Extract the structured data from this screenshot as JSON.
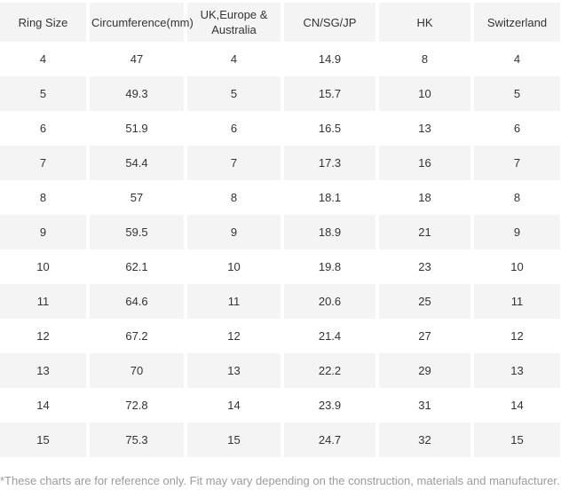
{
  "table": {
    "headers": [
      "Ring Size",
      "Circumference(mm)",
      "UK,Europe &\nAustralia",
      "CN/SG/JP",
      "HK",
      "Switzerland"
    ],
    "rows": [
      [
        "4",
        "47",
        "4",
        "14.9",
        "8",
        "4"
      ],
      [
        "5",
        "49.3",
        "5",
        "15.7",
        "10",
        "5"
      ],
      [
        "6",
        "51.9",
        "6",
        "16.5",
        "13",
        "6"
      ],
      [
        "7",
        "54.4",
        "7",
        "17.3",
        "16",
        "7"
      ],
      [
        "8",
        "57",
        "8",
        "18.1",
        "18",
        "8"
      ],
      [
        "9",
        "59.5",
        "9",
        "18.9",
        "21",
        "9"
      ],
      [
        "10",
        "62.1",
        "10",
        "19.8",
        "23",
        "10"
      ],
      [
        "11",
        "64.6",
        "11",
        "20.6",
        "25",
        "11"
      ],
      [
        "12",
        "67.2",
        "12",
        "21.4",
        "27",
        "12"
      ],
      [
        "13",
        "70",
        "13",
        "22.2",
        "29",
        "13"
      ],
      [
        "14",
        "72.8",
        "14",
        "23.9",
        "31",
        "14"
      ],
      [
        "15",
        "75.3",
        "15",
        "24.7",
        "32",
        "15"
      ]
    ]
  },
  "footnote": "*These charts are for reference only. Fit may vary depending on the construction, materials and manufacturer.",
  "colors": {
    "stripe_bg": "#f4f4f4",
    "header_bg": "#f4f4f4",
    "cell_text": "#333333",
    "footnote_text": "#9b9b9b",
    "column_gap": "#ffffff"
  }
}
